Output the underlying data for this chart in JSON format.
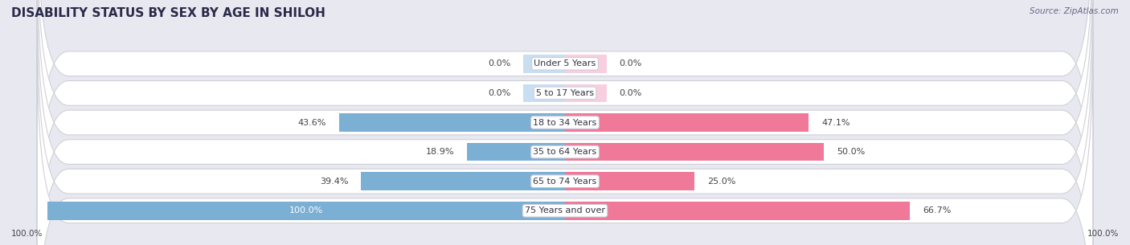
{
  "title": "DISABILITY STATUS BY SEX BY AGE IN SHILOH",
  "source": "Source: ZipAtlas.com",
  "categories": [
    "Under 5 Years",
    "5 to 17 Years",
    "18 to 34 Years",
    "35 to 64 Years",
    "65 to 74 Years",
    "75 Years and over"
  ],
  "male_values": [
    0.0,
    0.0,
    43.6,
    18.9,
    39.4,
    100.0
  ],
  "female_values": [
    0.0,
    0.0,
    47.1,
    50.0,
    25.0,
    66.7
  ],
  "male_color": "#7bafd4",
  "female_color": "#f07898",
  "male_stub_color": "#a8c8e8",
  "female_stub_color": "#f4b0c8",
  "bar_height": 0.62,
  "xlim_left": -100,
  "xlim_right": 100,
  "background_color": "#e8e8f0",
  "row_bg_color": "#f5f5fa",
  "title_bg": "#ffffff",
  "title_fontsize": 11,
  "value_fontsize": 8,
  "cat_fontsize": 8,
  "stub_value": 5.0,
  "zero_stub": 8.0
}
